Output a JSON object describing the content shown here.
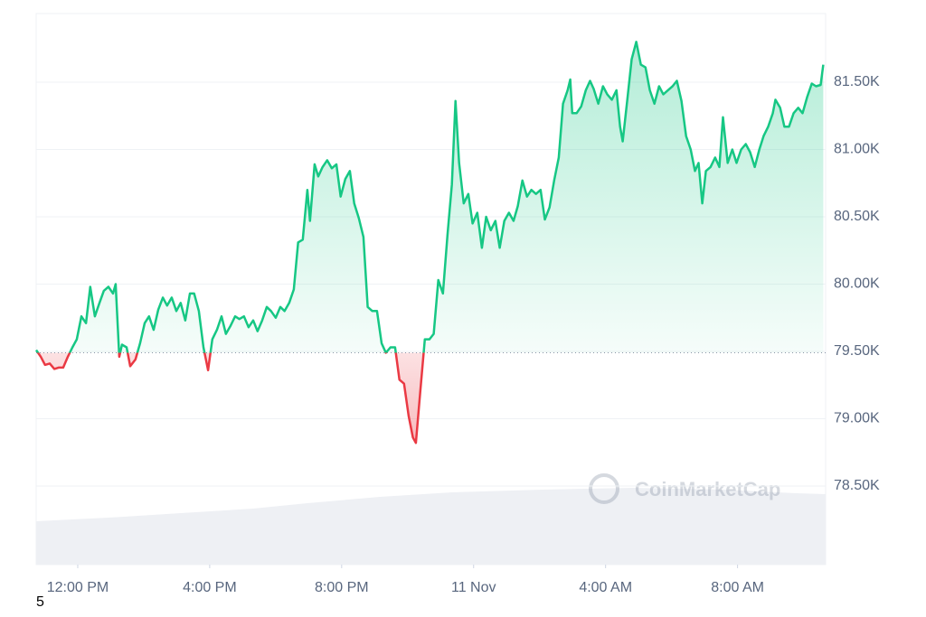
{
  "chart_data": {
    "type": "line",
    "watermark": "CoinMarketCap",
    "footnote": "5",
    "baseline": 79490,
    "up_color": "#16c784",
    "down_color": "#ea3943",
    "grid": true,
    "xlim": [
      10.74,
      34.67
    ],
    "ylim": [
      77916,
      82010
    ],
    "xticks": [
      {
        "value": 12,
        "label": "12:00 PM"
      },
      {
        "value": 16,
        "label": "4:00 PM"
      },
      {
        "value": 20,
        "label": "8:00 PM"
      },
      {
        "value": 24,
        "label": "11 Nov"
      },
      {
        "value": 28,
        "label": "4:00 AM"
      },
      {
        "value": 32,
        "label": "8:00 AM"
      }
    ],
    "yticks": [
      {
        "value": 78500,
        "label": "78.50K"
      },
      {
        "value": 79000,
        "label": "79.00K"
      },
      {
        "value": 79500,
        "label": "79.50K"
      },
      {
        "value": 80000,
        "label": "80.00K"
      },
      {
        "value": 80500,
        "label": "80.50K"
      },
      {
        "value": 81000,
        "label": "81.00K"
      },
      {
        "value": 81500,
        "label": "81.50K"
      }
    ],
    "x": [
      10.74,
      10.88,
      11.01,
      11.15,
      11.29,
      11.42,
      11.56,
      11.7,
      11.84,
      11.97,
      12.11,
      12.25,
      12.38,
      12.52,
      12.66,
      12.79,
      12.93,
      13.07,
      13.15,
      13.26,
      13.34,
      13.48,
      13.59,
      13.75,
      13.89,
      14.03,
      14.16,
      14.3,
      14.44,
      14.58,
      14.71,
      14.85,
      14.99,
      15.12,
      15.26,
      15.4,
      15.53,
      15.67,
      15.81,
      15.95,
      16.08,
      16.22,
      16.36,
      16.49,
      16.63,
      16.77,
      16.9,
      17.04,
      17.18,
      17.32,
      17.45,
      17.59,
      17.73,
      17.86,
      18.0,
      18.14,
      18.27,
      18.41,
      18.55,
      18.68,
      18.82,
      18.96,
      19.04,
      19.18,
      19.29,
      19.42,
      19.56,
      19.7,
      19.84,
      19.97,
      20.11,
      20.25,
      20.38,
      20.52,
      20.66,
      20.79,
      20.93,
      21.07,
      21.21,
      21.34,
      21.48,
      21.62,
      21.75,
      21.89,
      22.03,
      22.16,
      22.25,
      22.38,
      22.52,
      22.66,
      22.79,
      22.93,
      23.07,
      23.21,
      23.34,
      23.45,
      23.56,
      23.7,
      23.84,
      23.97,
      24.11,
      24.25,
      24.38,
      24.52,
      24.66,
      24.79,
      24.93,
      25.07,
      25.21,
      25.34,
      25.48,
      25.62,
      25.75,
      25.89,
      26.03,
      26.16,
      26.3,
      26.44,
      26.58,
      26.71,
      26.85,
      26.93,
      26.99,
      27.12,
      27.26,
      27.4,
      27.53,
      27.64,
      27.78,
      27.92,
      28.05,
      28.19,
      28.33,
      28.44,
      28.52,
      28.66,
      28.79,
      28.93,
      29.07,
      29.21,
      29.34,
      29.48,
      29.62,
      29.75,
      29.89,
      30.03,
      30.16,
      30.3,
      30.44,
      30.58,
      30.71,
      30.82,
      30.93,
      31.04,
      31.18,
      31.32,
      31.45,
      31.56,
      31.7,
      31.84,
      31.97,
      32.11,
      32.25,
      32.38,
      32.52,
      32.66,
      32.79,
      32.93,
      33.07,
      33.15,
      33.29,
      33.42,
      33.56,
      33.7,
      33.84,
      33.97,
      34.11,
      34.25,
      34.38,
      34.52,
      34.6
    ],
    "values": [
      79510,
      79460,
      79400,
      79410,
      79370,
      79380,
      79380,
      79460,
      79530,
      79590,
      79760,
      79710,
      79980,
      79760,
      79860,
      79950,
      79980,
      79930,
      80000,
      79460,
      79550,
      79530,
      79390,
      79440,
      79560,
      79710,
      79760,
      79660,
      79810,
      79900,
      79840,
      79900,
      79800,
      79860,
      79730,
      79930,
      79930,
      79800,
      79530,
      79360,
      79590,
      79660,
      79760,
      79630,
      79690,
      79760,
      79740,
      79760,
      79680,
      79730,
      79650,
      79730,
      79830,
      79800,
      79750,
      79830,
      79800,
      79860,
      79960,
      80310,
      80330,
      80700,
      80470,
      80890,
      80800,
      80870,
      80920,
      80860,
      80890,
      80650,
      80780,
      80840,
      80600,
      80490,
      80350,
      79830,
      79800,
      79800,
      79560,
      79490,
      79530,
      79530,
      79290,
      79260,
      79020,
      78860,
      78820,
      79190,
      79590,
      79590,
      79630,
      80030,
      79930,
      80370,
      80740,
      81360,
      80900,
      80600,
      80670,
      80450,
      80530,
      80270,
      80500,
      80400,
      80470,
      80270,
      80470,
      80530,
      80470,
      80580,
      80770,
      80650,
      80700,
      80670,
      80700,
      80480,
      80570,
      80770,
      80940,
      81340,
      81440,
      81520,
      81270,
      81270,
      81320,
      81440,
      81510,
      81450,
      81340,
      81470,
      81410,
      81370,
      81440,
      81170,
      81060,
      81370,
      81670,
      81800,
      81630,
      81610,
      81440,
      81340,
      81470,
      81410,
      81440,
      81470,
      81510,
      81360,
      81100,
      81000,
      80840,
      80900,
      80600,
      80840,
      80870,
      80940,
      80870,
      81240,
      80900,
      81000,
      80900,
      81000,
      81040,
      80980,
      80870,
      81000,
      81100,
      81170,
      81270,
      81370,
      81310,
      81170,
      81170,
      81270,
      81310,
      81270,
      81390,
      81490,
      81470,
      81480,
      81630
    ]
  }
}
